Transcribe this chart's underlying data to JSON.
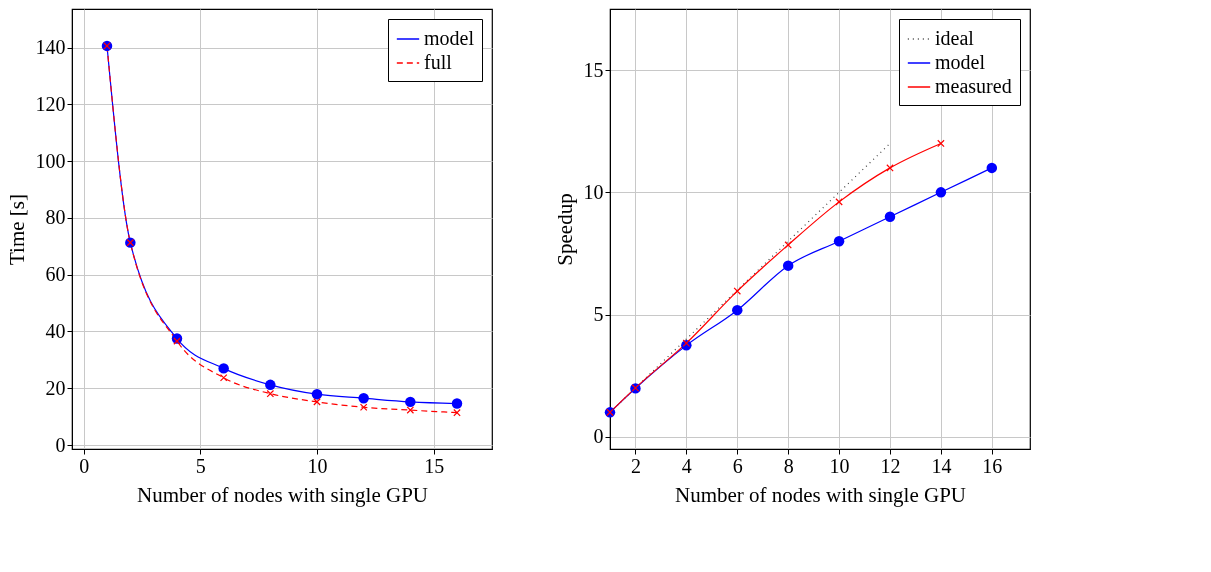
{
  "chart_data": [
    {
      "type": "line",
      "xlabel": "Number of nodes with single GPU",
      "ylabel": "Time [s]",
      "xlim": [
        -0.5,
        17.5
      ],
      "ylim": [
        -1.4,
        153.6
      ],
      "xticks": [
        0,
        5,
        10,
        15
      ],
      "yticks": [
        0,
        20,
        40,
        60,
        80,
        100,
        120,
        140
      ],
      "grid": true,
      "legend": "top right",
      "x": [
        1,
        2,
        4,
        6,
        8,
        10,
        12,
        14,
        16
      ],
      "series": [
        {
          "name": "model",
          "color": "#0000ff",
          "marker": "circle",
          "line_style": "solid",
          "values": [
            140.6,
            71.3,
            37.5,
            27.0,
            21.2,
            17.9,
            16.5,
            15.2,
            14.6
          ]
        },
        {
          "name": "full",
          "color": "#ff0000",
          "marker": "cross",
          "line_style": "dashed",
          "values": [
            140.6,
            71.3,
            36.6,
            23.7,
            18.1,
            15.2,
            13.3,
            12.3,
            11.4
          ]
        }
      ]
    },
    {
      "type": "line",
      "xlabel": "Number of nodes with single GPU",
      "ylabel": "Speedup",
      "xlim": [
        1,
        17.5
      ],
      "ylim": [
        -0.5,
        17.5
      ],
      "xticks": [
        2,
        4,
        6,
        8,
        10,
        12,
        14,
        16
      ],
      "yticks": [
        0,
        5,
        10,
        15
      ],
      "grid": true,
      "legend": "top right",
      "x": [
        1,
        2,
        4,
        6,
        8,
        10,
        12,
        14,
        16
      ],
      "series": [
        {
          "name": "ideal",
          "color": "#404040",
          "marker": "none",
          "line_style": "dotted",
          "x": [
            1,
            2,
            4,
            6,
            8,
            10,
            12
          ],
          "values": [
            1,
            2,
            4,
            6,
            8,
            10,
            12
          ]
        },
        {
          "name": "model",
          "color": "#0000ff",
          "marker": "circle",
          "line_style": "solid",
          "values": [
            1,
            1.98,
            3.74,
            5.18,
            7.0,
            8.0,
            9.0,
            10.0,
            11.0
          ]
        },
        {
          "name": "measured",
          "color": "#ff0000",
          "marker": "cross",
          "line_style": "solid",
          "values": [
            1,
            2,
            3.83,
            5.96,
            7.85,
            9.61,
            11.0,
            12.0,
            null
          ]
        }
      ]
    }
  ]
}
